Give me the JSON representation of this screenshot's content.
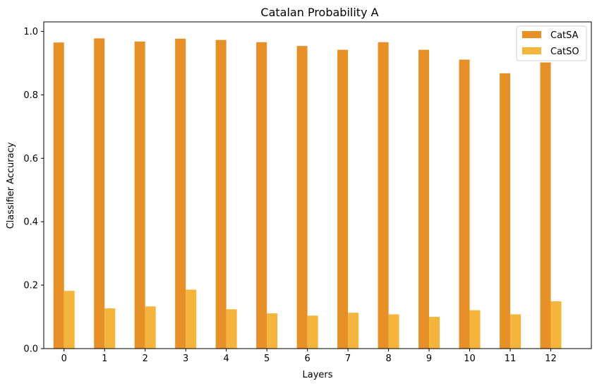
{
  "chart_data": {
    "type": "bar",
    "title": "Catalan Probability A",
    "xlabel": "Layers",
    "ylabel": "Classifier Accuracy",
    "categories": [
      "0",
      "1",
      "2",
      "3",
      "4",
      "5",
      "6",
      "7",
      "8",
      "9",
      "10",
      "11",
      "12"
    ],
    "ylim": [
      0,
      1.03
    ],
    "yticks": [
      0.0,
      0.2,
      0.4,
      0.6,
      0.8,
      1.0
    ],
    "ytick_labels": [
      "0.0",
      "0.2",
      "0.4",
      "0.6",
      "0.8",
      "1.0"
    ],
    "grid": false,
    "legend_position": "top-right",
    "series": [
      {
        "name": "CatSA",
        "color": "#e69027",
        "values": [
          0.965,
          0.978,
          0.968,
          0.977,
          0.973,
          0.966,
          0.954,
          0.942,
          0.966,
          0.942,
          0.911,
          0.868,
          0.902
        ]
      },
      {
        "name": "CatSO",
        "color": "#f5b53c",
        "values": [
          0.182,
          0.127,
          0.133,
          0.186,
          0.124,
          0.111,
          0.104,
          0.113,
          0.108,
          0.1,
          0.121,
          0.108,
          0.149
        ]
      }
    ]
  }
}
